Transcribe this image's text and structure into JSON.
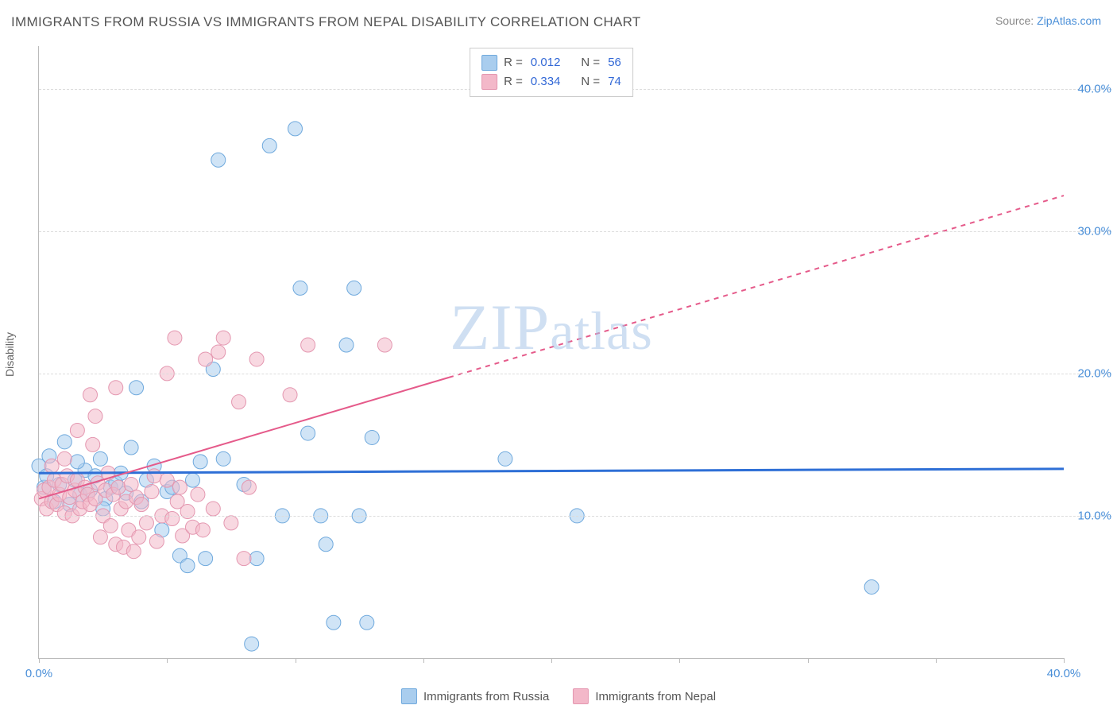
{
  "title": "IMMIGRANTS FROM RUSSIA VS IMMIGRANTS FROM NEPAL DISABILITY CORRELATION CHART",
  "source_prefix": "Source: ",
  "source_link": "ZipAtlas.com",
  "ylabel": "Disability",
  "watermark": "ZIPatlas",
  "chart": {
    "type": "scatter",
    "xlim": [
      0,
      40
    ],
    "ylim": [
      0,
      43
    ],
    "x_ticks": [
      0,
      5,
      10,
      15,
      20,
      25,
      30,
      35,
      40
    ],
    "x_tick_labels": {
      "0": "0.0%",
      "40": "40.0%"
    },
    "y_ticks": [
      10,
      20,
      30,
      40
    ],
    "y_tick_labels": {
      "10": "10.0%",
      "20": "20.0%",
      "30": "30.0%",
      "40": "40.0%"
    },
    "background_color": "#ffffff",
    "grid_color": "#dcdcdc",
    "axis_color": "#bbbbbb",
    "tick_label_color": "#4a8fd8",
    "series": [
      {
        "name": "Immigrants from Russia",
        "color_fill": "#a9cdee",
        "color_stroke": "#6fa9dd",
        "legend_fill": "#a9cdee",
        "legend_stroke": "#6fa9dd",
        "marker_radius": 9,
        "fill_opacity": 0.55,
        "R": "0.012",
        "N": "56",
        "trend": {
          "color": "#2e6fd6",
          "width": 3,
          "x1": 0,
          "y1": 13.0,
          "x2": 40,
          "y2": 13.3,
          "dash_from_x": null
        },
        "points": [
          [
            0.0,
            13.5
          ],
          [
            0.2,
            12.0
          ],
          [
            0.4,
            14.2
          ],
          [
            0.6,
            11.0
          ],
          [
            0.8,
            12.2
          ],
          [
            1.0,
            15.2
          ],
          [
            1.2,
            10.8
          ],
          [
            1.4,
            12.5
          ],
          [
            1.6,
            11.5
          ],
          [
            1.8,
            13.2
          ],
          [
            2.0,
            11.8
          ],
          [
            2.2,
            12.8
          ],
          [
            2.4,
            14.0
          ],
          [
            2.6,
            11.2
          ],
          [
            2.8,
            12.0
          ],
          [
            3.0,
            12.3
          ],
          [
            3.2,
            13.0
          ],
          [
            3.4,
            11.6
          ],
          [
            3.6,
            14.8
          ],
          [
            3.8,
            19.0
          ],
          [
            4.0,
            11.0
          ],
          [
            4.2,
            12.5
          ],
          [
            4.5,
            13.5
          ],
          [
            5.0,
            11.7
          ],
          [
            5.2,
            12.0
          ],
          [
            5.5,
            7.2
          ],
          [
            5.8,
            6.5
          ],
          [
            6.0,
            12.5
          ],
          [
            6.3,
            13.8
          ],
          [
            6.5,
            7.0
          ],
          [
            6.8,
            20.3
          ],
          [
            7.0,
            35.0
          ],
          [
            7.2,
            14.0
          ],
          [
            8.0,
            12.2
          ],
          [
            8.3,
            1.0
          ],
          [
            8.5,
            7.0
          ],
          [
            9.0,
            36.0
          ],
          [
            9.5,
            10.0
          ],
          [
            10.0,
            37.2
          ],
          [
            10.2,
            26.0
          ],
          [
            10.5,
            15.8
          ],
          [
            11.0,
            10.0
          ],
          [
            11.2,
            8.0
          ],
          [
            11.5,
            2.5
          ],
          [
            12.0,
            22.0
          ],
          [
            12.3,
            26.0
          ],
          [
            12.5,
            10.0
          ],
          [
            12.8,
            2.5
          ],
          [
            13.0,
            15.5
          ],
          [
            18.2,
            14.0
          ],
          [
            21.0,
            10.0
          ],
          [
            32.5,
            5.0
          ],
          [
            0.3,
            12.8
          ],
          [
            1.5,
            13.8
          ],
          [
            2.5,
            10.5
          ],
          [
            4.8,
            9.0
          ]
        ]
      },
      {
        "name": "Immigrants from Nepal",
        "color_fill": "#f3b8c9",
        "color_stroke": "#e497b0",
        "legend_fill": "#f3b8c9",
        "legend_stroke": "#e497b0",
        "marker_radius": 9,
        "fill_opacity": 0.55,
        "R": "0.334",
        "N": "74",
        "trend": {
          "color": "#e55a8a",
          "width": 2,
          "x1": 0,
          "y1": 11.2,
          "x2": 40,
          "y2": 32.5,
          "dash_from_x": 16
        },
        "points": [
          [
            0.1,
            11.2
          ],
          [
            0.2,
            11.8
          ],
          [
            0.3,
            10.5
          ],
          [
            0.4,
            12.0
          ],
          [
            0.5,
            11.0
          ],
          [
            0.6,
            12.5
          ],
          [
            0.7,
            10.8
          ],
          [
            0.8,
            11.5
          ],
          [
            0.9,
            12.2
          ],
          [
            1.0,
            10.2
          ],
          [
            1.1,
            12.8
          ],
          [
            1.2,
            11.3
          ],
          [
            1.3,
            10.0
          ],
          [
            1.4,
            11.8
          ],
          [
            1.5,
            12.5
          ],
          [
            1.6,
            10.5
          ],
          [
            1.7,
            11.0
          ],
          [
            1.8,
            12.0
          ],
          [
            1.9,
            11.5
          ],
          [
            2.0,
            10.8
          ],
          [
            2.1,
            15.0
          ],
          [
            2.2,
            11.2
          ],
          [
            2.3,
            12.3
          ],
          [
            2.4,
            8.5
          ],
          [
            2.5,
            10.0
          ],
          [
            2.6,
            11.8
          ],
          [
            2.7,
            13.0
          ],
          [
            2.8,
            9.3
          ],
          [
            2.9,
            11.5
          ],
          [
            3.0,
            8.0
          ],
          [
            3.1,
            12.0
          ],
          [
            3.2,
            10.5
          ],
          [
            3.3,
            7.8
          ],
          [
            3.4,
            11.0
          ],
          [
            3.5,
            9.0
          ],
          [
            3.6,
            12.2
          ],
          [
            3.7,
            7.5
          ],
          [
            3.8,
            11.3
          ],
          [
            3.9,
            8.5
          ],
          [
            4.0,
            10.8
          ],
          [
            4.2,
            9.5
          ],
          [
            4.4,
            11.7
          ],
          [
            4.6,
            8.2
          ],
          [
            4.8,
            10.0
          ],
          [
            5.0,
            12.5
          ],
          [
            5.2,
            9.8
          ],
          [
            5.4,
            11.0
          ],
          [
            5.6,
            8.6
          ],
          [
            5.8,
            10.3
          ],
          [
            6.0,
            9.2
          ],
          [
            6.2,
            11.5
          ],
          [
            6.4,
            9.0
          ],
          [
            2.0,
            18.5
          ],
          [
            2.2,
            17.0
          ],
          [
            5.5,
            12.0
          ],
          [
            6.5,
            21.0
          ],
          [
            7.0,
            21.5
          ],
          [
            7.2,
            22.5
          ],
          [
            7.5,
            9.5
          ],
          [
            7.8,
            18.0
          ],
          [
            8.0,
            7.0
          ],
          [
            8.2,
            12.0
          ],
          [
            8.5,
            21.0
          ],
          [
            9.8,
            18.5
          ],
          [
            10.5,
            22.0
          ],
          [
            13.5,
            22.0
          ],
          [
            6.8,
            10.5
          ],
          [
            5.0,
            20.0
          ],
          [
            3.0,
            19.0
          ],
          [
            1.5,
            16.0
          ],
          [
            1.0,
            14.0
          ],
          [
            0.5,
            13.5
          ],
          [
            4.5,
            12.8
          ],
          [
            5.3,
            22.5
          ]
        ]
      }
    ]
  }
}
